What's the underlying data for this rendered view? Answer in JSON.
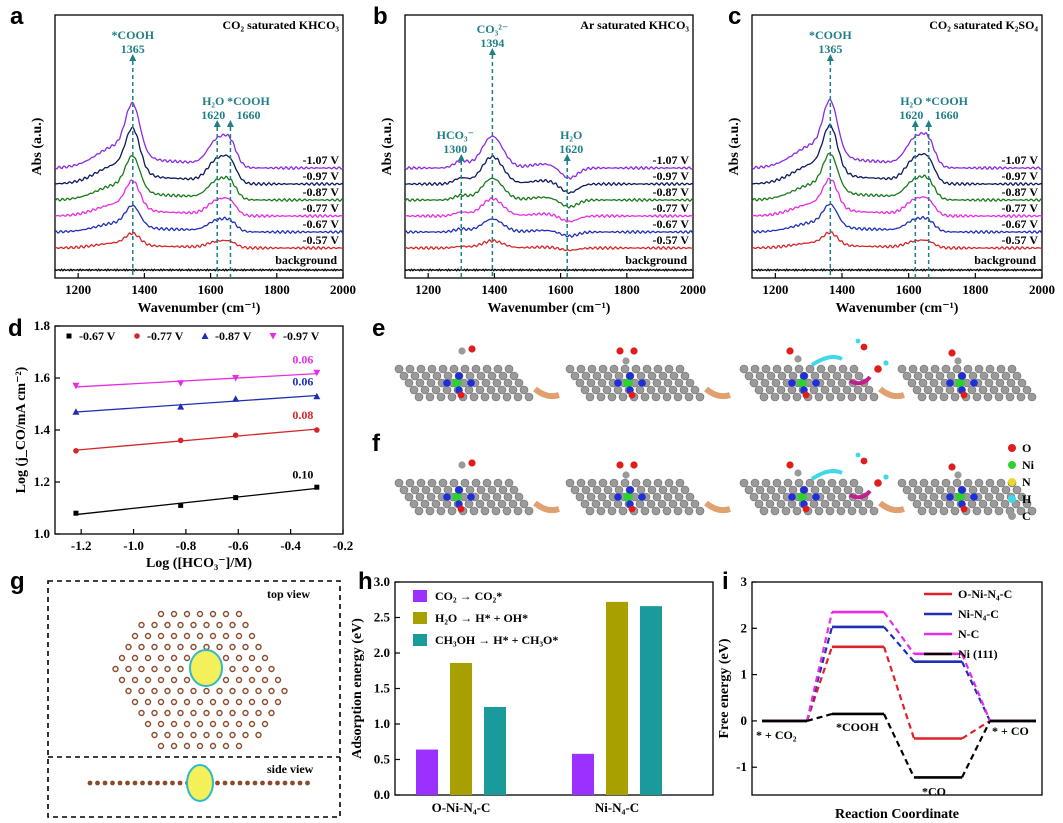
{
  "panels": {
    "a": "a",
    "b": "b",
    "c": "c",
    "d": "d",
    "e": "e",
    "f": "f",
    "g": "g",
    "h": "h",
    "i": "i"
  },
  "spectra": {
    "xlabel": "Wavenumber (cm⁻¹)",
    "ylabel": "Abs (a.u.)",
    "xticks": [
      "1200",
      "1400",
      "1600",
      "1800",
      "2000"
    ],
    "potentials": [
      "-0.57 V",
      "-0.67 V",
      "-0.77 V",
      "-0.87 V",
      "-0.97 V",
      "-1.07 V"
    ],
    "background_label": "background",
    "colors": [
      "#d62728",
      "#1f2fb5",
      "#e62de6",
      "#1a7a1a",
      "#0c1a5c",
      "#8a2be2",
      "#000000"
    ],
    "a": {
      "title": "CO₂ saturated KHCO₃",
      "ann": [
        {
          "l1": "*COOH",
          "l2": "1365"
        },
        {
          "l1": "H₂O",
          "l2": "1620"
        },
        {
          "l1": "*COOH",
          "l2": "1660"
        }
      ]
    },
    "b": {
      "title": "Ar saturated KHCO₃",
      "ann": [
        {
          "l1": "CO₃²⁻",
          "l2": "1394"
        },
        {
          "l1": "HCO₃⁻",
          "l2": "1300"
        },
        {
          "l1": "H₂O",
          "l2": "1620"
        }
      ]
    },
    "c": {
      "title": "CO₂ saturated K₂SO₄",
      "ann": [
        {
          "l1": "*COOH",
          "l2": "1365"
        },
        {
          "l1": "H₂O",
          "l2": "1620"
        },
        {
          "l1": "*COOH",
          "l2": "1660"
        }
      ]
    }
  },
  "d": {
    "xlabel": "Log ([HCO₃⁻]/M)",
    "ylabel": "Log (j_CO/mA cm⁻²)",
    "xticks": [
      "-1.2",
      "-1.0",
      "-0.8",
      "-0.6",
      "-0.4",
      "-0.2"
    ],
    "yticks": [
      "1.0",
      "1.2",
      "1.4",
      "1.6",
      "1.8"
    ],
    "series": [
      {
        "name": "-0.67 V",
        "color": "#000000",
        "marker": "square",
        "slope": "0.10",
        "x": [
          -1.22,
          -0.82,
          -0.61,
          -0.3
        ],
        "y": [
          1.08,
          1.11,
          1.14,
          1.18
        ]
      },
      {
        "name": "-0.77 V",
        "color": "#d62728",
        "marker": "circle",
        "slope": "0.08",
        "x": [
          -1.22,
          -0.82,
          -0.61,
          -0.3
        ],
        "y": [
          1.32,
          1.36,
          1.38,
          1.4
        ]
      },
      {
        "name": "-0.87 V",
        "color": "#1f2fb5",
        "marker": "triangle",
        "slope": "0.06",
        "x": [
          -1.22,
          -0.82,
          -0.61,
          -0.3
        ],
        "y": [
          1.47,
          1.49,
          1.52,
          1.53
        ]
      },
      {
        "name": "-0.97 V",
        "color": "#e62de6",
        "marker": "tri-down",
        "slope": "0.06",
        "x": [
          -1.22,
          -0.82,
          -0.61,
          -0.3
        ],
        "y": [
          1.57,
          1.58,
          1.6,
          1.62
        ]
      }
    ]
  },
  "atom_legend": [
    "O",
    "Ni",
    "N",
    "H",
    "C"
  ],
  "g": {
    "top": "top view",
    "side": "side view"
  },
  "h": {
    "ylabel": "Adsorption energy (eV)",
    "yticks": [
      "0.0",
      "0.5",
      "1.0",
      "1.5",
      "2.0",
      "2.5",
      "3.0"
    ],
    "categories": [
      "O-Ni-N₄-C",
      "Ni-N₄-C"
    ],
    "series": [
      {
        "name": "CO₂ → CO₂*",
        "color": "#9b30ff",
        "values": [
          0.64,
          0.58
        ]
      },
      {
        "name": "H₂O →  H* + OH*",
        "color": "#a8a000",
        "values": [
          1.86,
          2.72
        ]
      },
      {
        "name": "CH₃OH → H* + CH₃O*",
        "color": "#1a9a9a",
        "values": [
          1.24,
          2.66
        ]
      }
    ]
  },
  "i": {
    "xlabel": "Reaction Coordinate",
    "ylabel": "Free energy (eV)",
    "yticks": [
      "3",
      "2",
      "1",
      "0",
      "-1"
    ],
    "series": [
      {
        "name": "O-Ni-N₄-C",
        "color": "#e0202a",
        "values": [
          0,
          1.6,
          -0.38,
          0
        ]
      },
      {
        "name": "Ni-N₄-C",
        "color": "#1f2fb5",
        "values": [
          0,
          2.03,
          1.28,
          0
        ]
      },
      {
        "name": "N-C",
        "color": "#e62de6",
        "values": [
          0,
          2.35,
          1.45,
          0
        ]
      },
      {
        "name": "Ni (111)",
        "color": "#000000",
        "values": [
          0,
          0.15,
          -1.22,
          0
        ]
      }
    ],
    "states": [
      "* + CO₂",
      "*COOH",
      "*CO",
      "* + CO"
    ]
  },
  "chart_data": [
    {
      "type": "line",
      "panel": "a",
      "title": "CO₂ saturated KHCO₃",
      "xlabel": "Wavenumber (cm⁻¹)",
      "ylabel": "Abs (a.u.)",
      "xlim": [
        1130,
        2000
      ],
      "series_names": [
        "background",
        "-0.57 V",
        "-0.67 V",
        "-0.77 V",
        "-0.87 V",
        "-0.97 V",
        "-1.07 V"
      ],
      "peaks": [
        1365,
        1620,
        1660
      ]
    },
    {
      "type": "line",
      "panel": "b",
      "title": "Ar saturated KHCO₃",
      "xlabel": "Wavenumber (cm⁻¹)",
      "ylabel": "Abs (a.u.)",
      "xlim": [
        1130,
        2000
      ],
      "series_names": [
        "background",
        "-0.57 V",
        "-0.67 V",
        "-0.77 V",
        "-0.87 V",
        "-0.97 V",
        "-1.07 V"
      ],
      "peaks": [
        1300,
        1394,
        1620
      ]
    },
    {
      "type": "line",
      "panel": "c",
      "title": "CO₂ saturated K₂SO₄",
      "xlabel": "Wavenumber (cm⁻¹)",
      "ylabel": "Abs (a.u.)",
      "xlim": [
        1130,
        2000
      ],
      "series_names": [
        "background",
        "-0.57 V",
        "-0.67 V",
        "-0.77 V",
        "-0.87 V",
        "-0.97 V",
        "-1.07 V"
      ],
      "peaks": [
        1365,
        1620,
        1660
      ]
    },
    {
      "type": "scatter",
      "panel": "d",
      "xlabel": "Log ([HCO₃⁻]/M)",
      "ylabel": "Log (j_CO/mA cm⁻²)",
      "xlim": [
        -1.3,
        -0.2
      ],
      "ylim": [
        1.0,
        1.8
      ],
      "series": [
        {
          "name": "-0.67 V",
          "slope": 0.1
        },
        {
          "name": "-0.77 V",
          "slope": 0.08
        },
        {
          "name": "-0.87 V",
          "slope": 0.06
        },
        {
          "name": "-0.97 V",
          "slope": 0.06
        }
      ]
    },
    {
      "type": "bar",
      "panel": "h",
      "ylabel": "Adsorption energy (eV)",
      "ylim": [
        0,
        3.0
      ],
      "categories": [
        "O-Ni-N₄-C",
        "Ni-N₄-C"
      ]
    },
    {
      "type": "line",
      "panel": "i",
      "xlabel": "Reaction Coordinate",
      "ylabel": "Free energy (eV)",
      "ylim": [
        -1.6,
        3.0
      ],
      "categories": [
        "* + CO₂",
        "*COOH",
        "*CO",
        "* + CO"
      ]
    }
  ]
}
